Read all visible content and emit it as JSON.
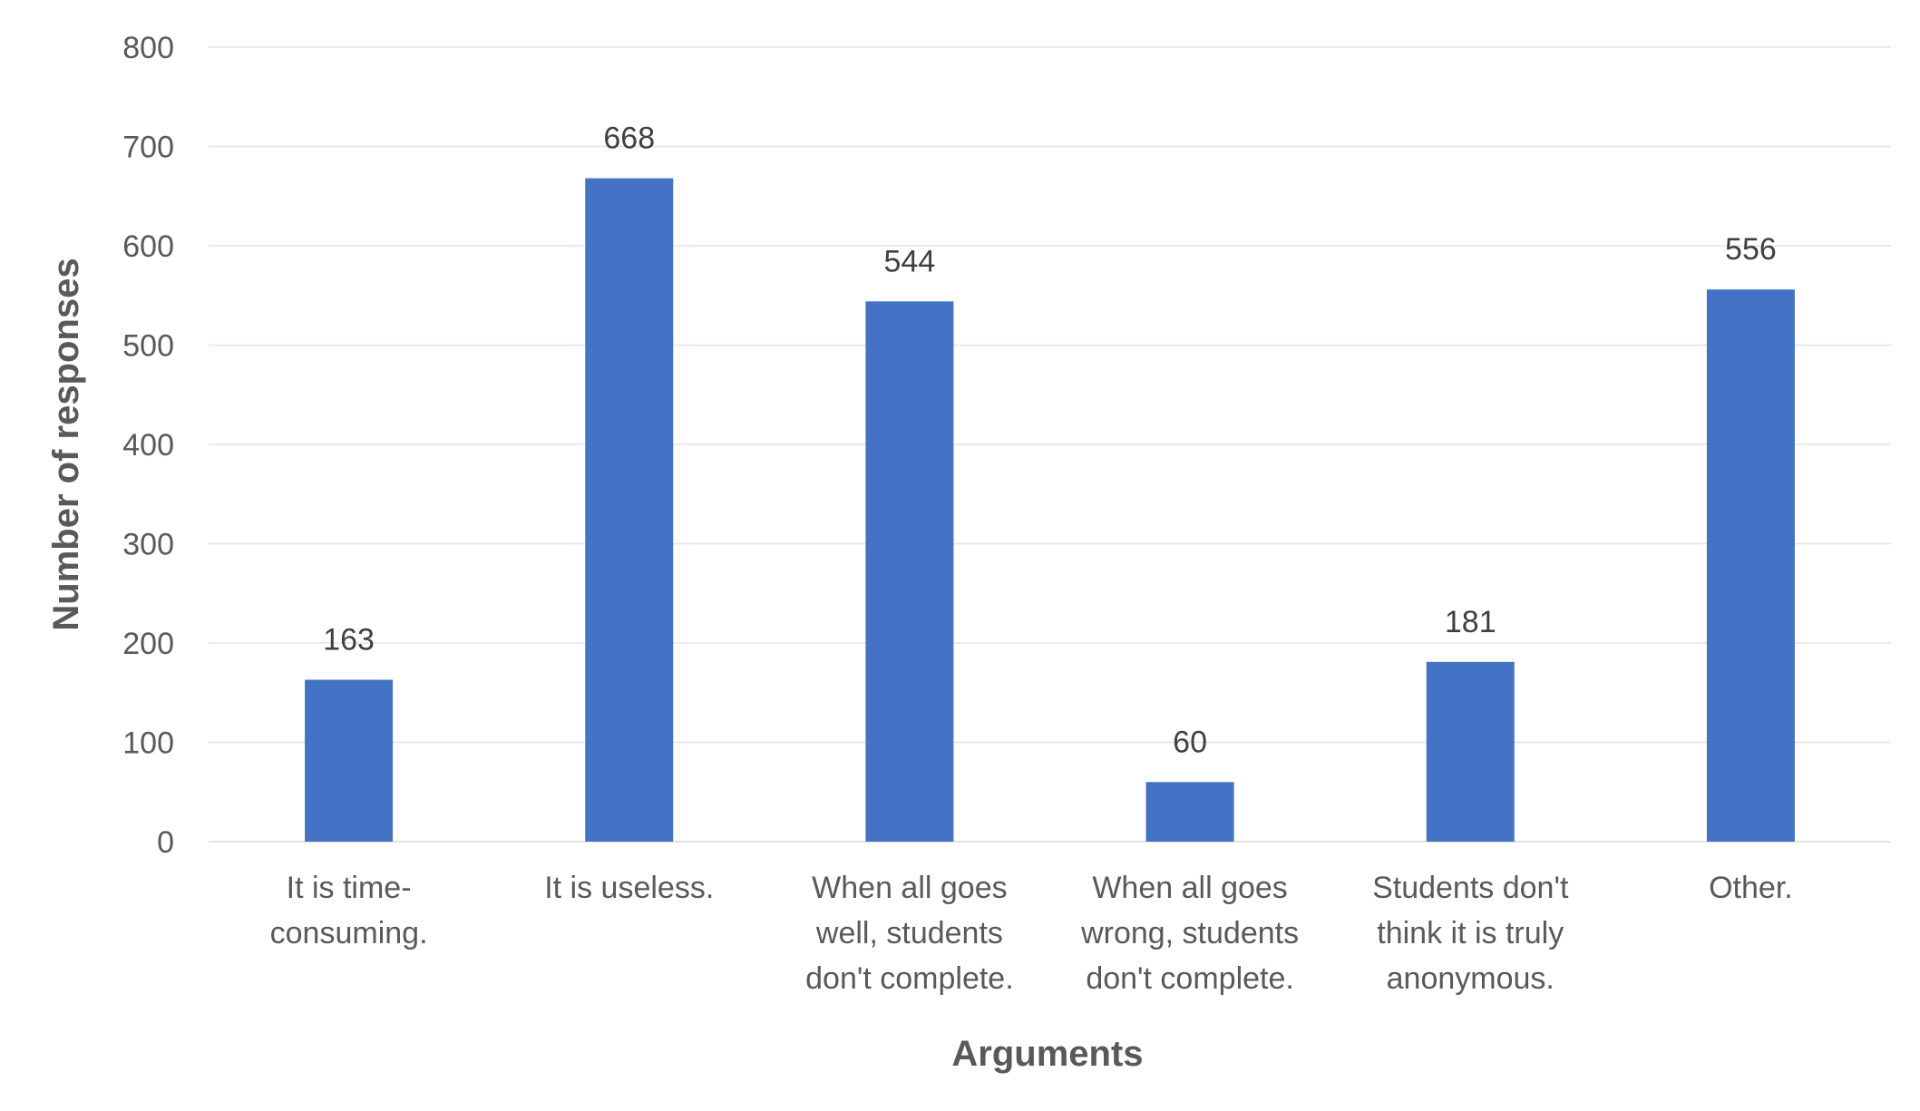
{
  "chart_data": {
    "type": "bar",
    "categories": [
      [
        "It is time-",
        "consuming."
      ],
      [
        "It is useless."
      ],
      [
        "When all goes",
        "well, students",
        "don't complete."
      ],
      [
        "When all goes",
        "wrong, students",
        "don't complete."
      ],
      [
        "Students don't",
        "think it is truly",
        "anonymous."
      ],
      [
        "Other."
      ]
    ],
    "values": [
      163,
      668,
      544,
      60,
      181,
      556
    ],
    "title": "",
    "xlabel": "Arguments",
    "ylabel": "Number of responses",
    "ylim": [
      0,
      800
    ],
    "yticks": [
      0,
      100,
      200,
      300,
      400,
      500,
      600,
      700,
      800
    ],
    "grid": true,
    "data_labels": true,
    "bar_color": "#4472C4"
  }
}
